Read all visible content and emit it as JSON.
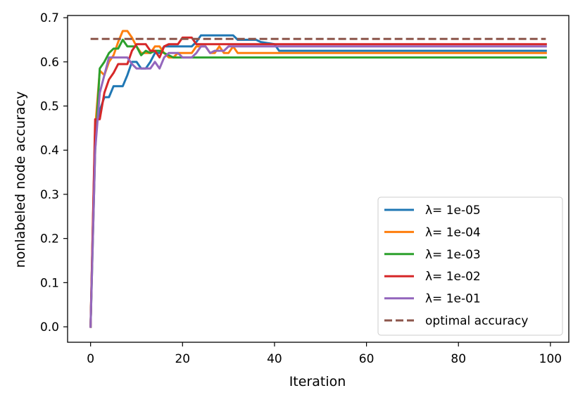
{
  "chart_data": {
    "type": "line",
    "xlabel": "Iteration",
    "ylabel": "nonlabeled node accuracy",
    "xlim": [
      -5,
      104
    ],
    "ylim": [
      -0.035,
      0.705
    ],
    "xticks": [
      0,
      20,
      40,
      60,
      80,
      100
    ],
    "yticks": [
      0.0,
      0.1,
      0.2,
      0.3,
      0.4,
      0.5,
      0.6,
      0.7
    ],
    "xtick_labels": [
      "0",
      "20",
      "40",
      "60",
      "80",
      "100"
    ],
    "ytick_labels": [
      "0.0",
      "0.1",
      "0.2",
      "0.3",
      "0.4",
      "0.5",
      "0.6",
      "0.7"
    ],
    "grid": false,
    "legend_position": "lower right",
    "x_end": 99,
    "series": [
      {
        "name": "λ= 1e-05",
        "color": "#1f77b4",
        "dashed": false,
        "points": [
          [
            0,
            0.0
          ],
          [
            1,
            0.45
          ],
          [
            2,
            0.49
          ],
          [
            3,
            0.52
          ],
          [
            4,
            0.52
          ],
          [
            5,
            0.545
          ],
          [
            6,
            0.545
          ],
          [
            7,
            0.545
          ],
          [
            8,
            0.57
          ],
          [
            9,
            0.6
          ],
          [
            10,
            0.6
          ],
          [
            11,
            0.585
          ],
          [
            12,
            0.585
          ],
          [
            13,
            0.6
          ],
          [
            14,
            0.62
          ],
          [
            15,
            0.62
          ],
          [
            16,
            0.635
          ],
          [
            17,
            0.635
          ],
          [
            18,
            0.635
          ],
          [
            19,
            0.635
          ],
          [
            20,
            0.635
          ],
          [
            21,
            0.635
          ],
          [
            22,
            0.635
          ],
          [
            23,
            0.645
          ],
          [
            24,
            0.66
          ],
          [
            25,
            0.66
          ],
          [
            30,
            0.66
          ],
          [
            31,
            0.66
          ],
          [
            32,
            0.65
          ],
          [
            36,
            0.65
          ],
          [
            37,
            0.645
          ],
          [
            40,
            0.64
          ],
          [
            41,
            0.625
          ],
          [
            99,
            0.625
          ]
        ]
      },
      {
        "name": "λ= 1e-04",
        "color": "#ff7f0e",
        "dashed": false,
        "points": [
          [
            0,
            0.0
          ],
          [
            1,
            0.45
          ],
          [
            2,
            0.58
          ],
          [
            3,
            0.57
          ],
          [
            4,
            0.6
          ],
          [
            5,
            0.615
          ],
          [
            6,
            0.645
          ],
          [
            7,
            0.67
          ],
          [
            8,
            0.67
          ],
          [
            9,
            0.655
          ],
          [
            10,
            0.635
          ],
          [
            11,
            0.62
          ],
          [
            12,
            0.62
          ],
          [
            13,
            0.62
          ],
          [
            14,
            0.635
          ],
          [
            15,
            0.635
          ],
          [
            16,
            0.62
          ],
          [
            17,
            0.61
          ],
          [
            18,
            0.61
          ],
          [
            19,
            0.62
          ],
          [
            20,
            0.62
          ],
          [
            21,
            0.62
          ],
          [
            22,
            0.62
          ],
          [
            23,
            0.635
          ],
          [
            24,
            0.635
          ],
          [
            25,
            0.635
          ],
          [
            26,
            0.62
          ],
          [
            27,
            0.62
          ],
          [
            28,
            0.635
          ],
          [
            29,
            0.62
          ],
          [
            30,
            0.62
          ],
          [
            31,
            0.635
          ],
          [
            32,
            0.62
          ],
          [
            99,
            0.62
          ]
        ]
      },
      {
        "name": "λ= 1e-03",
        "color": "#2ca02c",
        "dashed": false,
        "points": [
          [
            0,
            0.0
          ],
          [
            1,
            0.4
          ],
          [
            2,
            0.585
          ],
          [
            3,
            0.6
          ],
          [
            4,
            0.62
          ],
          [
            5,
            0.63
          ],
          [
            6,
            0.63
          ],
          [
            7,
            0.65
          ],
          [
            8,
            0.635
          ],
          [
            9,
            0.635
          ],
          [
            10,
            0.635
          ],
          [
            11,
            0.615
          ],
          [
            12,
            0.625
          ],
          [
            13,
            0.62
          ],
          [
            14,
            0.625
          ],
          [
            15,
            0.625
          ],
          [
            16,
            0.62
          ],
          [
            17,
            0.615
          ],
          [
            18,
            0.61
          ],
          [
            99,
            0.61
          ]
        ]
      },
      {
        "name": "λ= 1e-02",
        "color": "#d62728",
        "dashed": false,
        "points": [
          [
            0,
            0.0
          ],
          [
            1,
            0.47
          ],
          [
            2,
            0.47
          ],
          [
            3,
            0.53
          ],
          [
            4,
            0.56
          ],
          [
            5,
            0.575
          ],
          [
            6,
            0.595
          ],
          [
            7,
            0.595
          ],
          [
            8,
            0.595
          ],
          [
            9,
            0.625
          ],
          [
            10,
            0.64
          ],
          [
            11,
            0.64
          ],
          [
            12,
            0.64
          ],
          [
            13,
            0.625
          ],
          [
            14,
            0.625
          ],
          [
            15,
            0.61
          ],
          [
            16,
            0.635
          ],
          [
            17,
            0.64
          ],
          [
            18,
            0.64
          ],
          [
            19,
            0.64
          ],
          [
            20,
            0.655
          ],
          [
            21,
            0.655
          ],
          [
            22,
            0.655
          ],
          [
            23,
            0.64
          ],
          [
            99,
            0.64
          ]
        ]
      },
      {
        "name": "λ= 1e-01",
        "color": "#9467bd",
        "dashed": false,
        "points": [
          [
            0,
            0.0
          ],
          [
            1,
            0.4
          ],
          [
            2,
            0.53
          ],
          [
            3,
            0.57
          ],
          [
            4,
            0.61
          ],
          [
            5,
            0.61
          ],
          [
            6,
            0.61
          ],
          [
            7,
            0.61
          ],
          [
            8,
            0.61
          ],
          [
            9,
            0.595
          ],
          [
            10,
            0.585
          ],
          [
            11,
            0.585
          ],
          [
            12,
            0.585
          ],
          [
            13,
            0.585
          ],
          [
            14,
            0.6
          ],
          [
            15,
            0.585
          ],
          [
            16,
            0.61
          ],
          [
            17,
            0.62
          ],
          [
            18,
            0.62
          ],
          [
            19,
            0.62
          ],
          [
            20,
            0.61
          ],
          [
            21,
            0.61
          ],
          [
            22,
            0.61
          ],
          [
            23,
            0.62
          ],
          [
            24,
            0.635
          ],
          [
            25,
            0.635
          ],
          [
            26,
            0.62
          ],
          [
            27,
            0.625
          ],
          [
            28,
            0.625
          ],
          [
            29,
            0.625
          ],
          [
            30,
            0.635
          ],
          [
            31,
            0.635
          ],
          [
            99,
            0.635
          ]
        ]
      },
      {
        "name": "optimal accuracy",
        "color": "#8c564b",
        "dashed": true,
        "points": [
          [
            0,
            0.652
          ],
          [
            99,
            0.652
          ]
        ]
      }
    ]
  }
}
